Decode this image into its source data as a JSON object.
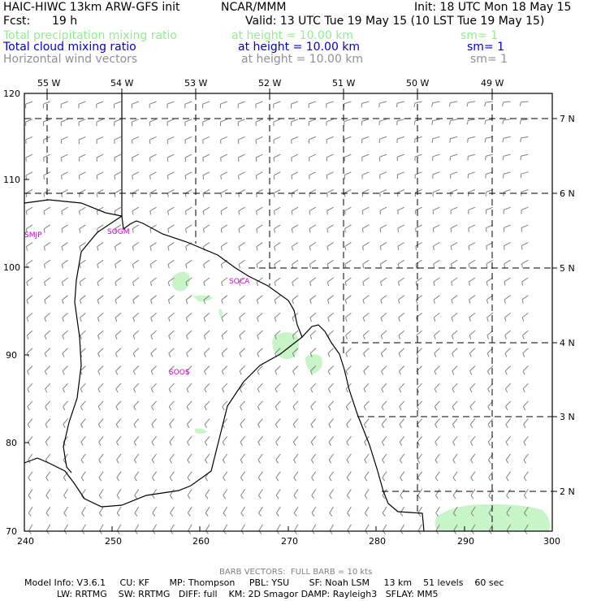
{
  "header": {
    "model_title": "HAIC-HIWC 13km ARW-GFS init",
    "org": "NCAR/MMM",
    "init": "Init: 18 UTC Mon 18 May 15",
    "fcst_label": "Fcst:",
    "fcst_value": "19 h",
    "valid": "Valid: 13 UTC Tue 19 May 15 (10 LST Tue 19 May 15)"
  },
  "fields": [
    {
      "name": "Total precipitation mixing ratio",
      "height": "at height = 10.00 km",
      "sm": "sm= 1",
      "color": "#90ee90"
    },
    {
      "name": "Total cloud mixing ratio",
      "height": "at height = 10.00 km",
      "sm": "sm= 1",
      "color": "#0000cc"
    },
    {
      "name": "Horizontal wind vectors",
      "height": "at height = 10.00 km",
      "sm": "sm= 1",
      "color": "#909090"
    }
  ],
  "map": {
    "top_lon_labels": [
      "55 W",
      "54 W",
      "53 W",
      "52 W",
      "51 W",
      "50 W",
      "49 W"
    ],
    "right_lat_labels": [
      "7 N",
      "6 N",
      "5 N",
      "4 N",
      "3 N",
      "2 N"
    ],
    "y_axis_ticks": [
      "120",
      "110",
      "100",
      "90",
      "80",
      "70"
    ],
    "x_axis_ticks": [
      "240",
      "250",
      "260",
      "270",
      "280",
      "290",
      "300"
    ],
    "stations": [
      "SMJP",
      "SOGM",
      "SOCA",
      "SOOS"
    ],
    "colors": {
      "coast": "#000000",
      "grid": "#000000",
      "precip": "#c8f5c8",
      "barb": "#808080",
      "station": "#cc00cc"
    }
  },
  "footer": {
    "barb_note": "BARB VECTORS:  FULL BARB = 10 kts",
    "model_info_1": "Model Info: V3.6.1     CU: KF       MP: Thompson     PBL: YSU       SF: Noah LSM     13 km    51 levels    60 sec",
    "model_info_2": "LW: RRTMG    SW: RRTMG   DIFF: full    KM: 2D Smagor DAMP: Rayleigh3   SFLAY: MM5"
  }
}
